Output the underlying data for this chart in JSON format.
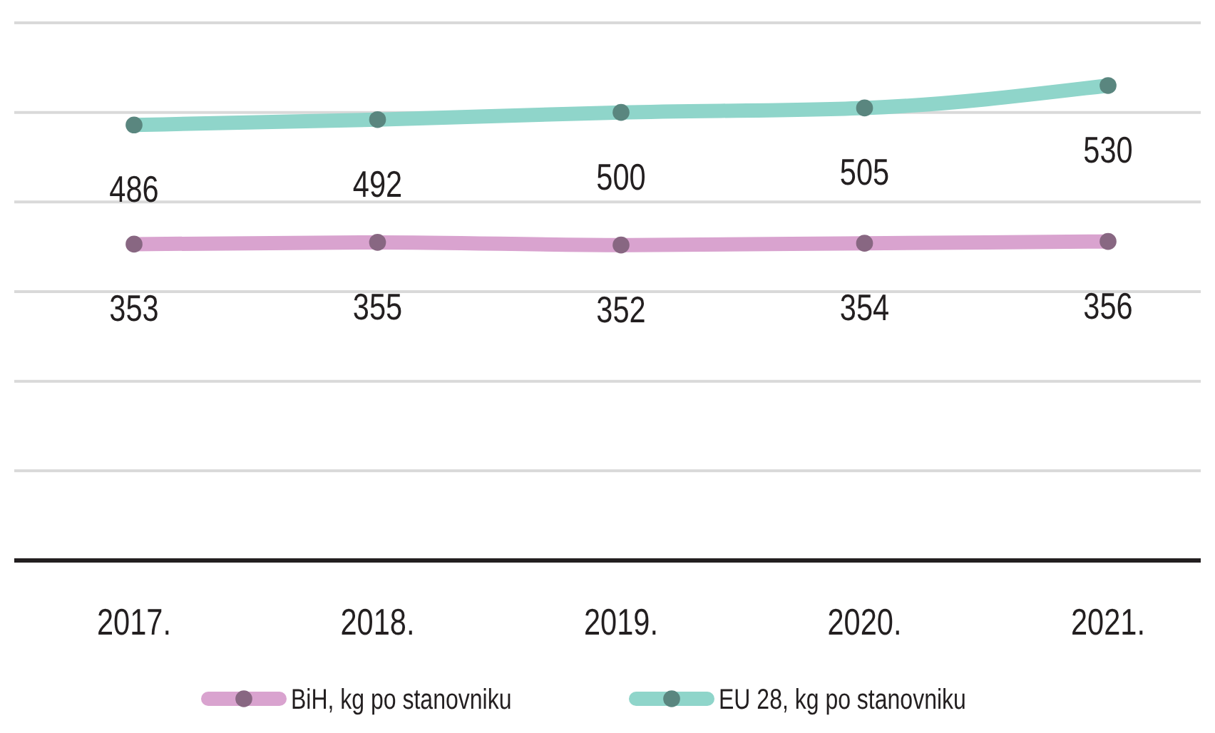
{
  "chart_data": {
    "type": "line",
    "categories": [
      "2017.",
      "2018.",
      "2019.",
      "2020.",
      "2021."
    ],
    "series": [
      {
        "name": "BiH, kg po stanovniku",
        "color": "#d9a3cf",
        "values": [
          353,
          355,
          352,
          354,
          356
        ]
      },
      {
        "name": "EU 28, kg po stanovniku",
        "color": "#8fd5ca",
        "values": [
          486,
          492,
          500,
          505,
          530
        ]
      }
    ],
    "ylim": [
      0,
      600
    ],
    "yticks": [
      {
        "value": 0,
        "label": null
      },
      {
        "value": 100,
        "label": null
      },
      {
        "value": 200,
        "label": null
      },
      {
        "value": 300,
        "label": null
      },
      {
        "value": 400,
        "label": null
      },
      {
        "value": 500,
        "label": null
      },
      {
        "value": 600,
        "label": null
      }
    ],
    "tick_labels": "x",
    "grid": "y",
    "legend": "bottom",
    "marker": "circle",
    "line_style": "solid",
    "data_labels": true
  }
}
